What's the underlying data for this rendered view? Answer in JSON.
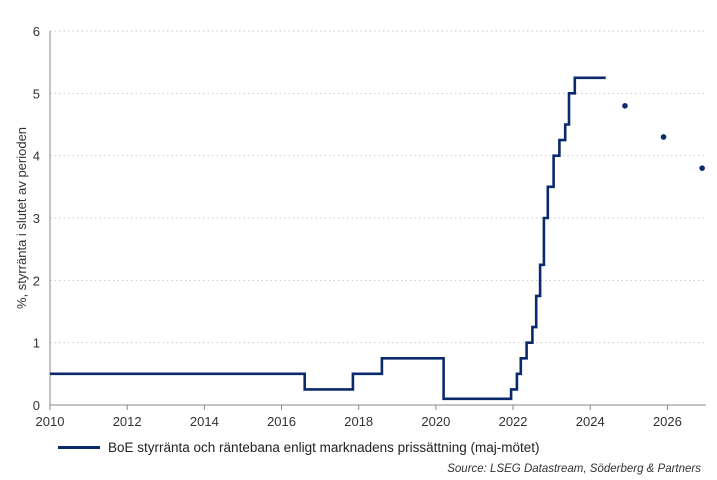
{
  "chart_data": {
    "type": "line",
    "title": "",
    "xlabel": "",
    "ylabel": "%, styrränta i slutet av perioden",
    "xlim": [
      2010,
      2027
    ],
    "ylim": [
      0,
      6
    ],
    "x_ticks": [
      "2010",
      "2012",
      "2014",
      "2016",
      "2018",
      "2020",
      "2022",
      "2024",
      "2026"
    ],
    "y_ticks": [
      "0",
      "1",
      "2",
      "3",
      "4",
      "5",
      "6"
    ],
    "grid": "horizontal dotted",
    "colors": {
      "series": "#0b2a6b",
      "grid": "#c8c8c8",
      "axis": "#888888"
    },
    "series": [
      {
        "name": "BoE styrränta och räntebana enligt marknadens prissättning (maj-mötet)",
        "style": "step-line",
        "points": [
          [
            2010.0,
            0.5
          ],
          [
            2016.6,
            0.5
          ],
          [
            2016.6,
            0.25
          ],
          [
            2017.85,
            0.25
          ],
          [
            2017.85,
            0.5
          ],
          [
            2018.6,
            0.5
          ],
          [
            2018.6,
            0.75
          ],
          [
            2020.2,
            0.75
          ],
          [
            2020.2,
            0.1
          ],
          [
            2021.95,
            0.1
          ],
          [
            2021.95,
            0.25
          ],
          [
            2022.1,
            0.25
          ],
          [
            2022.1,
            0.5
          ],
          [
            2022.2,
            0.5
          ],
          [
            2022.2,
            0.75
          ],
          [
            2022.35,
            0.75
          ],
          [
            2022.35,
            1.0
          ],
          [
            2022.5,
            1.0
          ],
          [
            2022.5,
            1.25
          ],
          [
            2022.6,
            1.25
          ],
          [
            2022.6,
            1.75
          ],
          [
            2022.7,
            1.75
          ],
          [
            2022.7,
            2.25
          ],
          [
            2022.8,
            2.25
          ],
          [
            2022.8,
            3.0
          ],
          [
            2022.9,
            3.0
          ],
          [
            2022.9,
            3.5
          ],
          [
            2023.05,
            3.5
          ],
          [
            2023.05,
            4.0
          ],
          [
            2023.2,
            4.0
          ],
          [
            2023.2,
            4.25
          ],
          [
            2023.35,
            4.25
          ],
          [
            2023.35,
            4.5
          ],
          [
            2023.45,
            4.5
          ],
          [
            2023.45,
            5.0
          ],
          [
            2023.6,
            5.0
          ],
          [
            2023.6,
            5.25
          ],
          [
            2024.4,
            5.25
          ]
        ]
      },
      {
        "name": "BoE styrränta och räntebana enligt marknadens prissättning (maj-mötet)",
        "style": "markers",
        "points": [
          [
            2024.9,
            4.8
          ],
          [
            2025.9,
            4.3
          ],
          [
            2026.9,
            3.8
          ]
        ]
      }
    ],
    "legend_text": "BoE styrränta och räntebana enligt marknadens prissättning (maj-mötet)",
    "source": "Source: LSEG Datastream, Söderberg & Partners"
  }
}
